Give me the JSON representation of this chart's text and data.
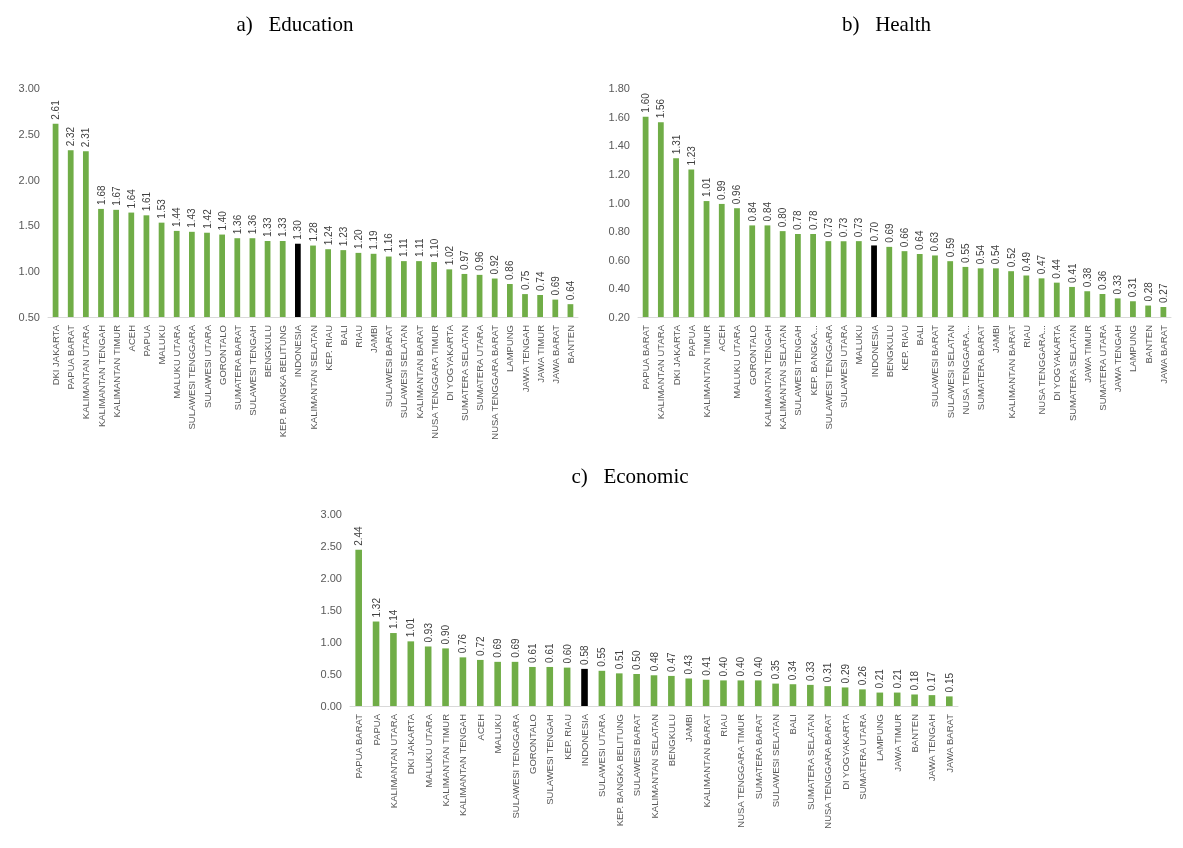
{
  "chart_data": [
    {
      "type": "bar",
      "title": "a)   Education",
      "categories": [
        "DKI JAKARTA",
        "PAPUA BARAT",
        "KALIMANTAN UTARA",
        "KALIMANTAN TENGAH",
        "KALIMANTAN TIMUR",
        "ACEH",
        "PAPUA",
        "MALUKU",
        "MALUKU UTARA",
        "SULAWESI TENGGARA",
        "SULAWESI UTARA",
        "GORONTALO",
        "SUMATERA BARAT",
        "SULAWESI TENGAH",
        "BENGKULU",
        "KEP. BANGKA BELITUNG",
        "INDONESIA",
        "KALIMANTAN SELATAN",
        "KEP. RIAU",
        "BALI",
        "RIAU",
        "JAMBI",
        "SULAWESI BARAT",
        "SULAWESI SELATAN",
        "KALIMANTAN BARAT",
        "NUSA TENGGARA TIMUR",
        "DI YOGYAKARTA",
        "SUMATERA SELATAN",
        "SUMATERA UTARA",
        "NUSA TENGGARA BARAT",
        "LAMPUNG",
        "JAWA TENGAH",
        "JAWA TIMUR",
        "JAWA BARAT",
        "BANTEN"
      ],
      "values": [
        2.61,
        2.32,
        2.31,
        1.68,
        1.67,
        1.64,
        1.61,
        1.53,
        1.44,
        1.43,
        1.42,
        1.4,
        1.36,
        1.36,
        1.33,
        1.33,
        1.3,
        1.28,
        1.24,
        1.23,
        1.2,
        1.19,
        1.16,
        1.11,
        1.11,
        1.1,
        1.02,
        0.97,
        0.96,
        0.92,
        0.86,
        0.75,
        0.74,
        0.69,
        0.64
      ],
      "value_labels": [
        "2.61",
        "2.32",
        "2.31",
        "1.68",
        "1.67",
        "1.64",
        "1.61",
        "1.53",
        "1.44",
        "1.43",
        "1.42",
        "1.40",
        "1.36",
        "1.36",
        "1.33",
        "1.33",
        "1.30",
        "1.28",
        "1.24",
        "1.23",
        "1.20",
        "1.19",
        "1.16",
        "1.11",
        "1.11",
        "1.10",
        "1.02",
        "0.97",
        "0.96",
        "0.92",
        "0.86",
        "0.75",
        "0.74",
        "0.69",
        "0.64"
      ],
      "colors": [
        "#70ad47",
        "#70ad47",
        "#70ad47",
        "#70ad47",
        "#70ad47",
        "#70ad47",
        "#70ad47",
        "#70ad47",
        "#70ad47",
        "#70ad47",
        "#70ad47",
        "#70ad47",
        "#70ad47",
        "#70ad47",
        "#70ad47",
        "#70ad47",
        "#000000",
        "#70ad47",
        "#70ad47",
        "#70ad47",
        "#70ad47",
        "#70ad47",
        "#70ad47",
        "#70ad47",
        "#70ad47",
        "#70ad47",
        "#70ad47",
        "#70ad47",
        "#70ad47",
        "#70ad47",
        "#70ad47",
        "#70ad47",
        "#70ad47",
        "#70ad47",
        "#70ad47"
      ],
      "ylim": [
        0.5,
        3
      ],
      "yticks": [
        {
          "value": 0.5,
          "label": "0.50"
        },
        {
          "value": 1,
          "label": "1.00"
        },
        {
          "value": 1.5,
          "label": "1.50"
        },
        {
          "value": 2,
          "label": "2.00"
        },
        {
          "value": 2.5,
          "label": "2.50"
        },
        {
          "value": 3,
          "label": "3.00"
        }
      ]
    },
    {
      "type": "bar",
      "title": "b)   Health",
      "categories": [
        "PAPUA BARAT",
        "KALIMANTAN UTARA",
        "DKI JAKARTA",
        "PAPUA",
        "KALIMANTAN TIMUR",
        "ACEH",
        "MALUKU UTARA",
        "GORONTALO",
        "KALIMANTAN TENGAH",
        "KALIMANTAN SELATAN",
        "SULAWESI TENGAH",
        "KEP. BANGKA...",
        "SULAWESI TENGGARA",
        "SULAWESI UTARA",
        "MALUKU",
        "INDONESIA",
        "BENGKULU",
        "KEP. RIAU",
        "BALI",
        "SULAWESI BARAT",
        "SULAWESI SELATAN",
        "NUSA TENGGARA...",
        "SUMATERA BARAT",
        "JAMBI",
        "KALIMANTAN BARAT",
        "RIAU",
        "NUSA TENGGARA...",
        "DI YOGYAKARTA",
        "SUMATERA SELATAN",
        "JAWA TIMUR",
        "SUMATERA UTARA",
        "JAWA TENGAH",
        "LAMPUNG",
        "BANTEN",
        "JAWA BARAT"
      ],
      "values": [
        1.6,
        1.56,
        1.31,
        1.23,
        1.01,
        0.99,
        0.96,
        0.84,
        0.84,
        0.8,
        0.78,
        0.78,
        0.73,
        0.73,
        0.73,
        0.7,
        0.69,
        0.66,
        0.64,
        0.63,
        0.59,
        0.55,
        0.54,
        0.54,
        0.52,
        0.49,
        0.47,
        0.44,
        0.41,
        0.38,
        0.36,
        0.33,
        0.31,
        0.28,
        0.27
      ],
      "value_labels": [
        "1.60",
        "1.56",
        "1.31",
        "1.23",
        "1.01",
        "0.99",
        "0.96",
        "0.84",
        "0.84",
        "0.80",
        "0.78",
        "0.78",
        "0.73",
        "0.73",
        "0.73",
        "0.70",
        "0.69",
        "0.66",
        "0.64",
        "0.63",
        "0.59",
        "0.55",
        "0.54",
        "0.54",
        "0.52",
        "0.49",
        "0.47",
        "0.44",
        "0.41",
        "0.38",
        "0.36",
        "0.33",
        "0.31",
        "0.28",
        "0.27"
      ],
      "colors": [
        "#70ad47",
        "#70ad47",
        "#70ad47",
        "#70ad47",
        "#70ad47",
        "#70ad47",
        "#70ad47",
        "#70ad47",
        "#70ad47",
        "#70ad47",
        "#70ad47",
        "#70ad47",
        "#70ad47",
        "#70ad47",
        "#70ad47",
        "#000000",
        "#70ad47",
        "#70ad47",
        "#70ad47",
        "#70ad47",
        "#70ad47",
        "#70ad47",
        "#70ad47",
        "#70ad47",
        "#70ad47",
        "#70ad47",
        "#70ad47",
        "#70ad47",
        "#70ad47",
        "#70ad47",
        "#70ad47",
        "#70ad47",
        "#70ad47",
        "#70ad47",
        "#70ad47"
      ],
      "ylim": [
        0.2,
        1.8
      ],
      "yticks": [
        {
          "value": 0.2,
          "label": "0.20"
        },
        {
          "value": 0.4,
          "label": "0.40"
        },
        {
          "value": 0.6,
          "label": "0.60"
        },
        {
          "value": 0.8,
          "label": "0.80"
        },
        {
          "value": 1,
          "label": "1.00"
        },
        {
          "value": 1.2,
          "label": "1.20"
        },
        {
          "value": 1.4,
          "label": "1.40"
        },
        {
          "value": 1.6,
          "label": "1.60"
        },
        {
          "value": 1.8,
          "label": "1.80"
        }
      ]
    },
    {
      "type": "bar",
      "title": "c)   Economic",
      "categories": [
        "PAPUA BARAT",
        "PAPUA",
        "KALIMANTAN UTARA",
        "DKI JAKARTA",
        "MALUKU UTARA",
        "KALIMANTAN TIMUR",
        "KALIMANTAN TENGAH",
        "ACEH",
        "MALUKU",
        "SULAWESI TENGGARA",
        "GORONTALO",
        "SULAWESI TENGAH",
        "KEP. RIAU",
        "INDONESIA",
        "SULAWESI UTARA",
        "KEP. BANGKA BELITUNG",
        "SULAWESI BARAT",
        "KALIMANTAN SELATAN",
        "BENGKULU",
        "JAMBI",
        "KALIMANTAN BARAT",
        "RIAU",
        "NUSA TENGGARA TIMUR",
        "SUMATERA BARAT",
        "SULAWESI SELATAN",
        "BALI",
        "SUMATERA SELATAN",
        "NUSA TENGGARA BARAT",
        "DI YOGYAKARTA",
        "SUMATERA UTARA",
        "LAMPUNG",
        "JAWA TIMUR",
        "BANTEN",
        "JAWA TENGAH",
        "JAWA BARAT"
      ],
      "values": [
        2.44,
        1.32,
        1.14,
        1.01,
        0.93,
        0.9,
        0.76,
        0.72,
        0.69,
        0.69,
        0.61,
        0.61,
        0.6,
        0.58,
        0.55,
        0.51,
        0.5,
        0.48,
        0.47,
        0.43,
        0.41,
        0.4,
        0.4,
        0.4,
        0.35,
        0.34,
        0.33,
        0.31,
        0.29,
        0.26,
        0.21,
        0.21,
        0.18,
        0.17,
        0.15
      ],
      "value_labels": [
        "2.44",
        "1.32",
        "1.14",
        "1.01",
        "0.93",
        "0.90",
        "0.76",
        "0.72",
        "0.69",
        "0.69",
        "0.61",
        "0.61",
        "0.60",
        "0.58",
        "0.55",
        "0.51",
        "0.50",
        "0.48",
        "0.47",
        "0.43",
        "0.41",
        "0.40",
        "0.40",
        "0.40",
        "0.35",
        "0.34",
        "0.33",
        "0.31",
        "0.29",
        "0.26",
        "0.21",
        "0.21",
        "0.18",
        "0.17",
        "0.15"
      ],
      "colors": [
        "#70ad47",
        "#70ad47",
        "#70ad47",
        "#70ad47",
        "#70ad47",
        "#70ad47",
        "#70ad47",
        "#70ad47",
        "#70ad47",
        "#70ad47",
        "#70ad47",
        "#70ad47",
        "#70ad47",
        "#000000",
        "#70ad47",
        "#70ad47",
        "#70ad47",
        "#70ad47",
        "#70ad47",
        "#70ad47",
        "#70ad47",
        "#70ad47",
        "#70ad47",
        "#70ad47",
        "#70ad47",
        "#70ad47",
        "#70ad47",
        "#70ad47",
        "#70ad47",
        "#70ad47",
        "#70ad47",
        "#70ad47",
        "#70ad47",
        "#70ad47",
        "#70ad47"
      ],
      "ylim": [
        0,
        3
      ],
      "yticks": [
        {
          "value": 0,
          "label": "0.00"
        },
        {
          "value": 0.5,
          "label": "0.50"
        },
        {
          "value": 1,
          "label": "1.00"
        },
        {
          "value": 1.5,
          "label": "1.50"
        },
        {
          "value": 2,
          "label": "2.00"
        },
        {
          "value": 2.5,
          "label": "2.50"
        },
        {
          "value": 3,
          "label": "3.00"
        }
      ]
    }
  ]
}
